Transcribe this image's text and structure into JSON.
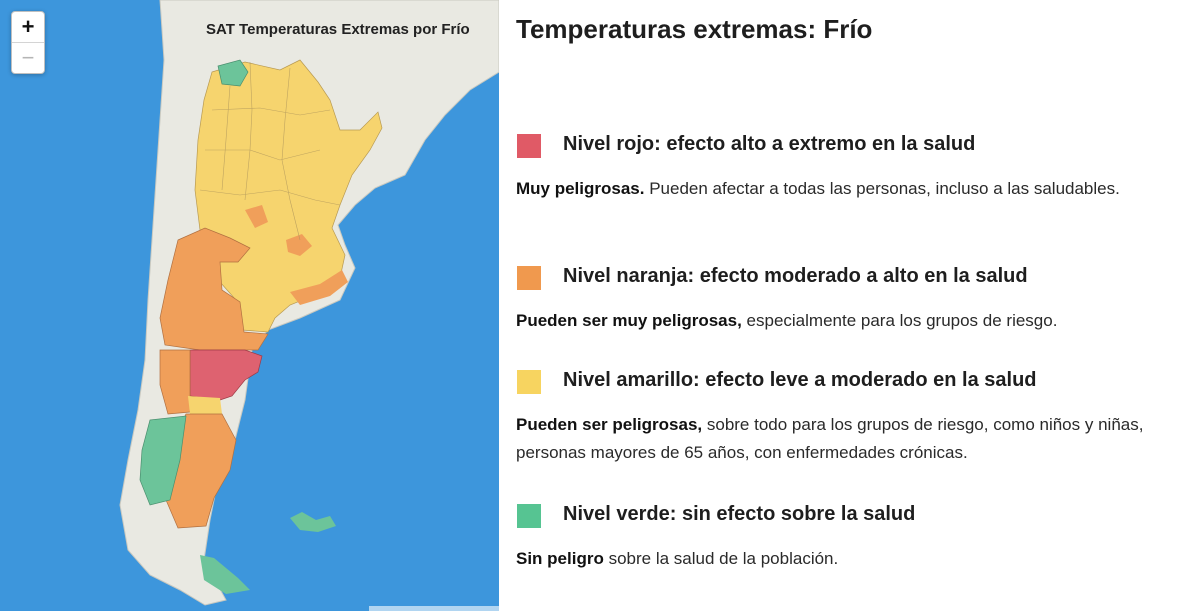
{
  "map": {
    "title": "SAT Temperaturas Extremas por Frío",
    "zoom_in_label": "+",
    "zoom_out_label": "−",
    "colors": {
      "ocean": "#3d96dc",
      "land": "#e9e9e2",
      "green": "#6cc49a",
      "yellow": "#f6d46e",
      "orange": "#f09f5a",
      "red": "#de6270"
    }
  },
  "legend": {
    "title": "Temperaturas extremas: Frío",
    "levels": [
      {
        "color": "#e05a66",
        "title": "Nivel rojo: efecto alto a extremo en la salud",
        "desc_bold": "Muy peligrosas.",
        "desc_rest": " Pueden afectar a todas las personas, incluso a las saludables."
      },
      {
        "color": "#f0994e",
        "title": "Nivel naranja: efecto moderado a alto en la salud",
        "desc_bold": "Pueden ser muy peligrosas,",
        "desc_rest": " especialmente para los grupos de riesgo."
      },
      {
        "color": "#f7d460",
        "title": "Nivel amarillo: efecto leve a moderado en la salud",
        "desc_bold": "Pueden ser peligrosas,",
        "desc_rest": " sobre todo para los grupos de riesgo, como niños y niñas, personas mayores de 65 años, con enfermedades crónicas."
      },
      {
        "color": "#56c492",
        "title": "Nivel verde: sin efecto sobre la salud",
        "desc_bold": "Sin peligro",
        "desc_rest": " sobre la salud de la población."
      }
    ]
  }
}
